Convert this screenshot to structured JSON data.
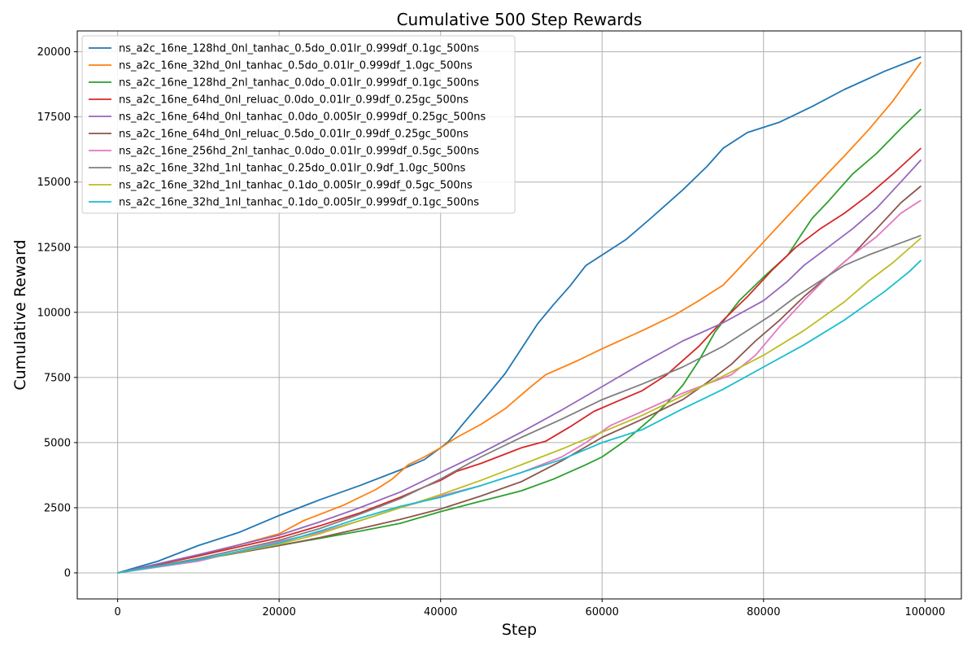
{
  "chart_data": {
    "type": "line",
    "title": "Cumulative 500 Step Rewards",
    "xlabel": "Step",
    "ylabel": "Cumulative Reward",
    "xlim": [
      -5000,
      104500
    ],
    "ylim": [
      -1000,
      20800
    ],
    "xticks": [
      0,
      20000,
      40000,
      60000,
      80000,
      100000
    ],
    "yticks": [
      0,
      2500,
      5000,
      7500,
      10000,
      12500,
      15000,
      17500,
      20000
    ],
    "grid": true,
    "legend_position": "top-left",
    "series": [
      {
        "name": "ns_a2c_16ne_128hd_0nl_tanhac_0.5do_0.01lr_0.999df_0.1gc_500ns",
        "color": "#1f77b4",
        "points": [
          [
            0,
            0
          ],
          [
            5000,
            450
          ],
          [
            10000,
            1050
          ],
          [
            15000,
            1550
          ],
          [
            20000,
            2200
          ],
          [
            25000,
            2800
          ],
          [
            30000,
            3350
          ],
          [
            35000,
            3950
          ],
          [
            38000,
            4350
          ],
          [
            40000,
            4800
          ],
          [
            41000,
            5050
          ],
          [
            43000,
            5800
          ],
          [
            46000,
            6900
          ],
          [
            48000,
            7650
          ],
          [
            50000,
            8600
          ],
          [
            52000,
            9550
          ],
          [
            54000,
            10300
          ],
          [
            56000,
            11000
          ],
          [
            58000,
            11800
          ],
          [
            60000,
            12200
          ],
          [
            63000,
            12800
          ],
          [
            66000,
            13600
          ],
          [
            70000,
            14700
          ],
          [
            73000,
            15600
          ],
          [
            75000,
            16300
          ],
          [
            78000,
            16900
          ],
          [
            82000,
            17300
          ],
          [
            86000,
            17900
          ],
          [
            90000,
            18550
          ],
          [
            95000,
            19250
          ],
          [
            99500,
            19800
          ]
        ]
      },
      {
        "name": "ns_a2c_16ne_32hd_0nl_tanhac_0.5do_0.01lr_0.999df_1.0gc_500ns",
        "color": "#ff7f0e",
        "points": [
          [
            0,
            0
          ],
          [
            10000,
            650
          ],
          [
            20000,
            1500
          ],
          [
            23000,
            2000
          ],
          [
            28000,
            2600
          ],
          [
            32000,
            3200
          ],
          [
            34000,
            3600
          ],
          [
            36000,
            4150
          ],
          [
            38000,
            4450
          ],
          [
            40000,
            4800
          ],
          [
            42000,
            5200
          ],
          [
            45000,
            5700
          ],
          [
            48000,
            6300
          ],
          [
            51000,
            7100
          ],
          [
            53000,
            7600
          ],
          [
            57000,
            8150
          ],
          [
            60000,
            8600
          ],
          [
            65000,
            9300
          ],
          [
            69000,
            9900
          ],
          [
            72000,
            10450
          ],
          [
            75000,
            11050
          ],
          [
            77000,
            11700
          ],
          [
            80000,
            12700
          ],
          [
            83000,
            13700
          ],
          [
            86000,
            14700
          ],
          [
            90000,
            16000
          ],
          [
            93000,
            17000
          ],
          [
            96000,
            18100
          ],
          [
            99500,
            19600
          ]
        ]
      },
      {
        "name": "ns_a2c_16ne_128hd_2nl_tanhac_0.0do_0.01lr_0.999df_0.1gc_500ns",
        "color": "#2ca02c",
        "points": [
          [
            0,
            0
          ],
          [
            10000,
            500
          ],
          [
            20000,
            1050
          ],
          [
            30000,
            1600
          ],
          [
            35000,
            1900
          ],
          [
            40000,
            2350
          ],
          [
            45000,
            2750
          ],
          [
            50000,
            3150
          ],
          [
            54000,
            3600
          ],
          [
            58000,
            4150
          ],
          [
            60000,
            4450
          ],
          [
            63000,
            5100
          ],
          [
            66000,
            5900
          ],
          [
            68000,
            6500
          ],
          [
            70000,
            7200
          ],
          [
            72000,
            8150
          ],
          [
            74000,
            9250
          ],
          [
            77000,
            10450
          ],
          [
            80000,
            11350
          ],
          [
            83000,
            12200
          ],
          [
            86000,
            13600
          ],
          [
            88000,
            14250
          ],
          [
            91000,
            15300
          ],
          [
            94000,
            16100
          ],
          [
            97000,
            17050
          ],
          [
            99500,
            17800
          ]
        ]
      },
      {
        "name": "ns_a2c_16ne_64hd_0nl_reluac_0.0do_0.01lr_0.99df_0.25gc_500ns",
        "color": "#d62728",
        "points": [
          [
            0,
            0
          ],
          [
            10000,
            650
          ],
          [
            20000,
            1350
          ],
          [
            25000,
            1800
          ],
          [
            30000,
            2300
          ],
          [
            35000,
            2900
          ],
          [
            38000,
            3300
          ],
          [
            40000,
            3550
          ],
          [
            42000,
            3900
          ],
          [
            45000,
            4200
          ],
          [
            50000,
            4800
          ],
          [
            53000,
            5050
          ],
          [
            56000,
            5600
          ],
          [
            59000,
            6200
          ],
          [
            62000,
            6600
          ],
          [
            65000,
            7000
          ],
          [
            68000,
            7600
          ],
          [
            72000,
            8700
          ],
          [
            75000,
            9700
          ],
          [
            78000,
            10600
          ],
          [
            81000,
            11600
          ],
          [
            84000,
            12500
          ],
          [
            87000,
            13200
          ],
          [
            90000,
            13800
          ],
          [
            93000,
            14500
          ],
          [
            96000,
            15300
          ],
          [
            99500,
            16300
          ]
        ]
      },
      {
        "name": "ns_a2c_16ne_64hd_0nl_tanhac_0.0do_0.005lr_0.999df_0.25gc_500ns",
        "color": "#9467bd",
        "points": [
          [
            0,
            0
          ],
          [
            10000,
            700
          ],
          [
            20000,
            1450
          ],
          [
            25000,
            1950
          ],
          [
            30000,
            2500
          ],
          [
            35000,
            3100
          ],
          [
            40000,
            3850
          ],
          [
            45000,
            4600
          ],
          [
            50000,
            5400
          ],
          [
            55000,
            6250
          ],
          [
            60000,
            7150
          ],
          [
            65000,
            8050
          ],
          [
            70000,
            8900
          ],
          [
            75000,
            9600
          ],
          [
            80000,
            10450
          ],
          [
            83000,
            11200
          ],
          [
            85000,
            11800
          ],
          [
            88000,
            12500
          ],
          [
            91000,
            13200
          ],
          [
            94000,
            14000
          ],
          [
            97000,
            15000
          ],
          [
            99500,
            15850
          ]
        ]
      },
      {
        "name": "ns_a2c_16ne_64hd_0nl_reluac_0.5do_0.01lr_0.99df_0.25gc_500ns",
        "color": "#8c564b",
        "points": [
          [
            0,
            0
          ],
          [
            10000,
            500
          ],
          [
            20000,
            1050
          ],
          [
            25000,
            1350
          ],
          [
            30000,
            1700
          ],
          [
            35000,
            2050
          ],
          [
            40000,
            2450
          ],
          [
            45000,
            2950
          ],
          [
            50000,
            3500
          ],
          [
            55000,
            4300
          ],
          [
            60000,
            5200
          ],
          [
            65000,
            5900
          ],
          [
            70000,
            6650
          ],
          [
            73000,
            7300
          ],
          [
            76000,
            8000
          ],
          [
            79000,
            8900
          ],
          [
            82000,
            9700
          ],
          [
            85000,
            10600
          ],
          [
            88000,
            11400
          ],
          [
            91000,
            12200
          ],
          [
            94000,
            13200
          ],
          [
            97000,
            14200
          ],
          [
            99500,
            14850
          ]
        ]
      },
      {
        "name": "ns_a2c_16ne_256hd_2nl_tanhac_0.0do_0.01lr_0.999df_0.5gc_500ns",
        "color": "#e377c2",
        "points": [
          [
            0,
            0
          ],
          [
            10000,
            450
          ],
          [
            20000,
            1200
          ],
          [
            25000,
            1550
          ],
          [
            30000,
            2000
          ],
          [
            35000,
            2500
          ],
          [
            40000,
            2950
          ],
          [
            45000,
            3350
          ],
          [
            50000,
            3850
          ],
          [
            55000,
            4450
          ],
          [
            58000,
            5000
          ],
          [
            61000,
            5650
          ],
          [
            65000,
            6200
          ],
          [
            70000,
            6900
          ],
          [
            73000,
            7250
          ],
          [
            76000,
            7600
          ],
          [
            79000,
            8350
          ],
          [
            82000,
            9450
          ],
          [
            85000,
            10450
          ],
          [
            88000,
            11400
          ],
          [
            91000,
            12200
          ],
          [
            94000,
            12900
          ],
          [
            97000,
            13800
          ],
          [
            99500,
            14300
          ]
        ]
      },
      {
        "name": "ns_a2c_16ne_32hd_1nl_tanhac_0.25do_0.01lr_0.9df_1.0gc_500ns",
        "color": "#7f7f7f",
        "points": [
          [
            0,
            0
          ],
          [
            10000,
            550
          ],
          [
            20000,
            1250
          ],
          [
            25000,
            1700
          ],
          [
            30000,
            2250
          ],
          [
            35000,
            2850
          ],
          [
            40000,
            3600
          ],
          [
            45000,
            4450
          ],
          [
            50000,
            5200
          ],
          [
            55000,
            5900
          ],
          [
            60000,
            6650
          ],
          [
            65000,
            7250
          ],
          [
            70000,
            7900
          ],
          [
            75000,
            8700
          ],
          [
            78000,
            9300
          ],
          [
            81000,
            9900
          ],
          [
            84000,
            10600
          ],
          [
            87000,
            11200
          ],
          [
            90000,
            11800
          ],
          [
            93000,
            12200
          ],
          [
            96000,
            12550
          ],
          [
            99500,
            12950
          ]
        ]
      },
      {
        "name": "ns_a2c_16ne_32hd_1nl_tanhac_0.1do_0.005lr_0.99df_0.5gc_500ns",
        "color": "#bcbd22",
        "points": [
          [
            0,
            0
          ],
          [
            10000,
            500
          ],
          [
            20000,
            1100
          ],
          [
            25000,
            1500
          ],
          [
            30000,
            2000
          ],
          [
            35000,
            2500
          ],
          [
            40000,
            3000
          ],
          [
            45000,
            3550
          ],
          [
            50000,
            4150
          ],
          [
            55000,
            4750
          ],
          [
            60000,
            5400
          ],
          [
            65000,
            6050
          ],
          [
            70000,
            6800
          ],
          [
            75000,
            7550
          ],
          [
            80000,
            8350
          ],
          [
            85000,
            9300
          ],
          [
            90000,
            10400
          ],
          [
            93000,
            11200
          ],
          [
            96000,
            11900
          ],
          [
            99500,
            12850
          ]
        ]
      },
      {
        "name": "ns_a2c_16ne_32hd_1nl_tanhac_0.1do_0.005lr_0.999df_0.1gc_500ns",
        "color": "#17becf",
        "points": [
          [
            0,
            0
          ],
          [
            10000,
            500
          ],
          [
            20000,
            1150
          ],
          [
            25000,
            1600
          ],
          [
            30000,
            2100
          ],
          [
            35000,
            2550
          ],
          [
            40000,
            2900
          ],
          [
            45000,
            3350
          ],
          [
            50000,
            3850
          ],
          [
            55000,
            4350
          ],
          [
            60000,
            5000
          ],
          [
            65000,
            5500
          ],
          [
            70000,
            6300
          ],
          [
            75000,
            7050
          ],
          [
            80000,
            7900
          ],
          [
            85000,
            8750
          ],
          [
            90000,
            9700
          ],
          [
            95000,
            10800
          ],
          [
            98000,
            11550
          ],
          [
            99500,
            12000
          ]
        ]
      }
    ]
  }
}
